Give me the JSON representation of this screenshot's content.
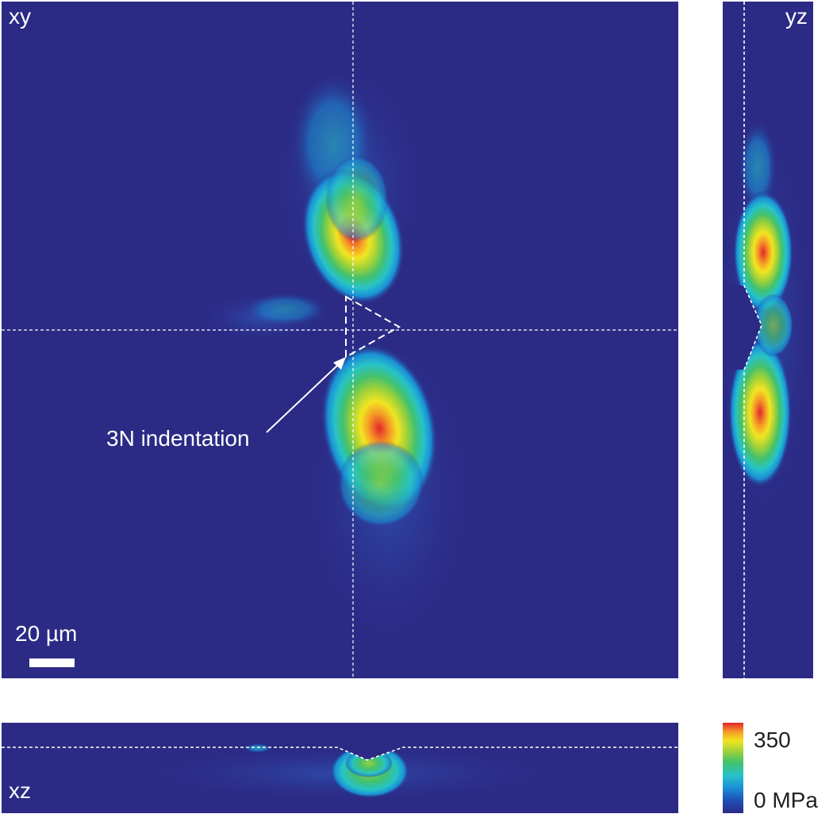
{
  "panels": {
    "xy": {
      "label": "xy"
    },
    "yz": {
      "label": "yz"
    },
    "xz": {
      "label": "xz"
    }
  },
  "annotation": {
    "text": "3N indentation"
  },
  "scale_bar": {
    "label": "20 µm"
  },
  "colorbar": {
    "max_label": "350",
    "min_label": "0 MPa",
    "colors": [
      "#2b2a85",
      "#1f4fb5",
      "#1a8fd6",
      "#27c3c8",
      "#43c16d",
      "#9bd13b",
      "#f2e521",
      "#f59a26",
      "#e3262b"
    ]
  },
  "colors": {
    "background": "#2b2a85",
    "overlay": "#ffffff"
  }
}
